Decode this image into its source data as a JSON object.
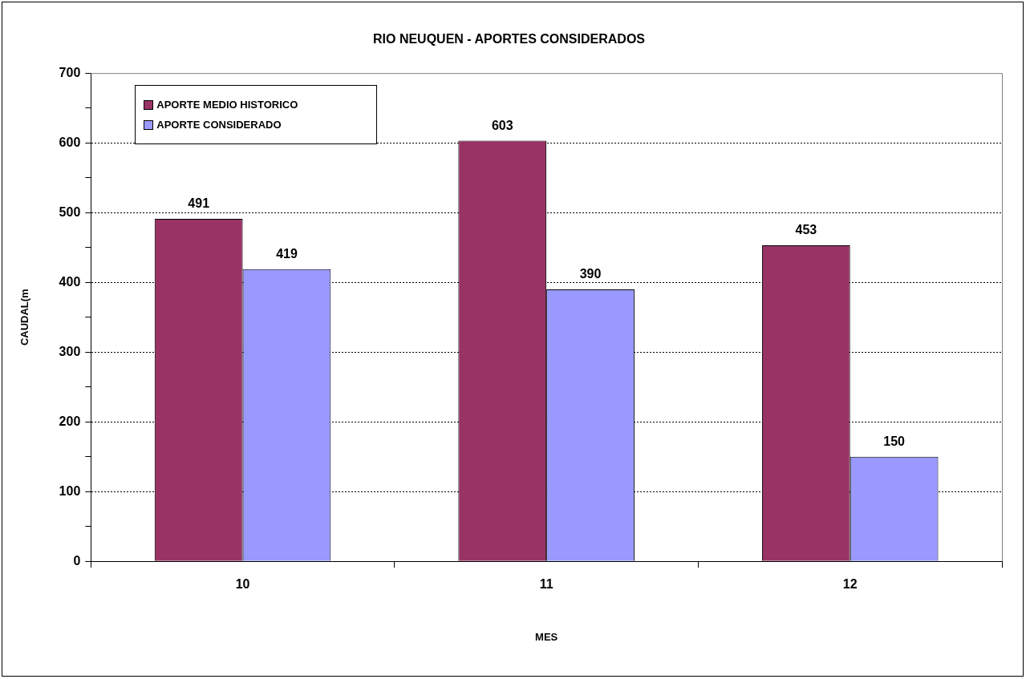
{
  "chart_data": {
    "type": "bar",
    "title": "RIO NEUQUEN - APORTES CONSIDERADOS",
    "xlabel": "MES",
    "ylabel": "CAUDAL(m",
    "categories": [
      "10",
      "11",
      "12"
    ],
    "series": [
      {
        "name": "APORTE MEDIO HISTORICO",
        "color": "#993366",
        "values": [
          491,
          603,
          453
        ]
      },
      {
        "name": "APORTE CONSIDERADO",
        "color": "#9999ff",
        "values": [
          419,
          390,
          150
        ]
      }
    ],
    "ylim": [
      0,
      700
    ],
    "yticks": [
      0,
      {
        "value": 50,
        "label": null
      },
      100,
      {
        "value": 150,
        "label": null
      },
      200,
      {
        "value": 250,
        "label": null
      },
      300,
      {
        "value": 350,
        "label": null
      },
      400,
      {
        "value": 450,
        "label": null
      },
      500,
      {
        "value": 550,
        "label": null
      },
      600,
      {
        "value": 650,
        "label": null
      },
      700
    ],
    "grid": "y",
    "legend": "top left",
    "data_labels": true
  }
}
